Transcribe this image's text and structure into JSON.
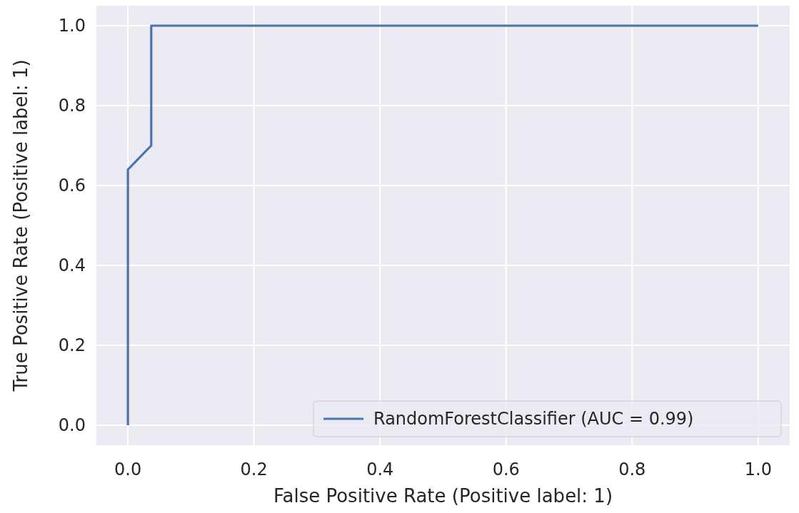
{
  "chart_data": {
    "type": "line",
    "xlabel": "False Positive Rate (Positive label: 1)",
    "ylabel": "True Positive Rate (Positive label: 1)",
    "x": [
      0,
      0,
      0.037,
      0.037,
      1
    ],
    "series": [
      {
        "name": "RandomForestClassifier (AUC = 0.99)",
        "color": "#4c72b0",
        "values": [
          0,
          0.64,
          0.7,
          1,
          1
        ]
      }
    ],
    "xlim": [
      -0.05,
      1.05
    ],
    "ylim": [
      -0.05,
      1.05
    ],
    "xticks": [
      {
        "value": 0,
        "label": "0.0"
      },
      {
        "value": 0.2,
        "label": "0.2"
      },
      {
        "value": 0.4,
        "label": "0.4"
      },
      {
        "value": 0.6,
        "label": "0.6"
      },
      {
        "value": 0.8,
        "label": "0.8"
      },
      {
        "value": 1,
        "label": "1.0"
      }
    ],
    "yticks": [
      {
        "value": 0,
        "label": "0.0"
      },
      {
        "value": 0.2,
        "label": "0.2"
      },
      {
        "value": 0.4,
        "label": "0.4"
      },
      {
        "value": 0.6,
        "label": "0.6"
      },
      {
        "value": 0.8,
        "label": "0.8"
      },
      {
        "value": 1,
        "label": "1.0"
      }
    ],
    "grid": true,
    "legend": "bottom right",
    "line_style": "solid",
    "marker": "none"
  }
}
